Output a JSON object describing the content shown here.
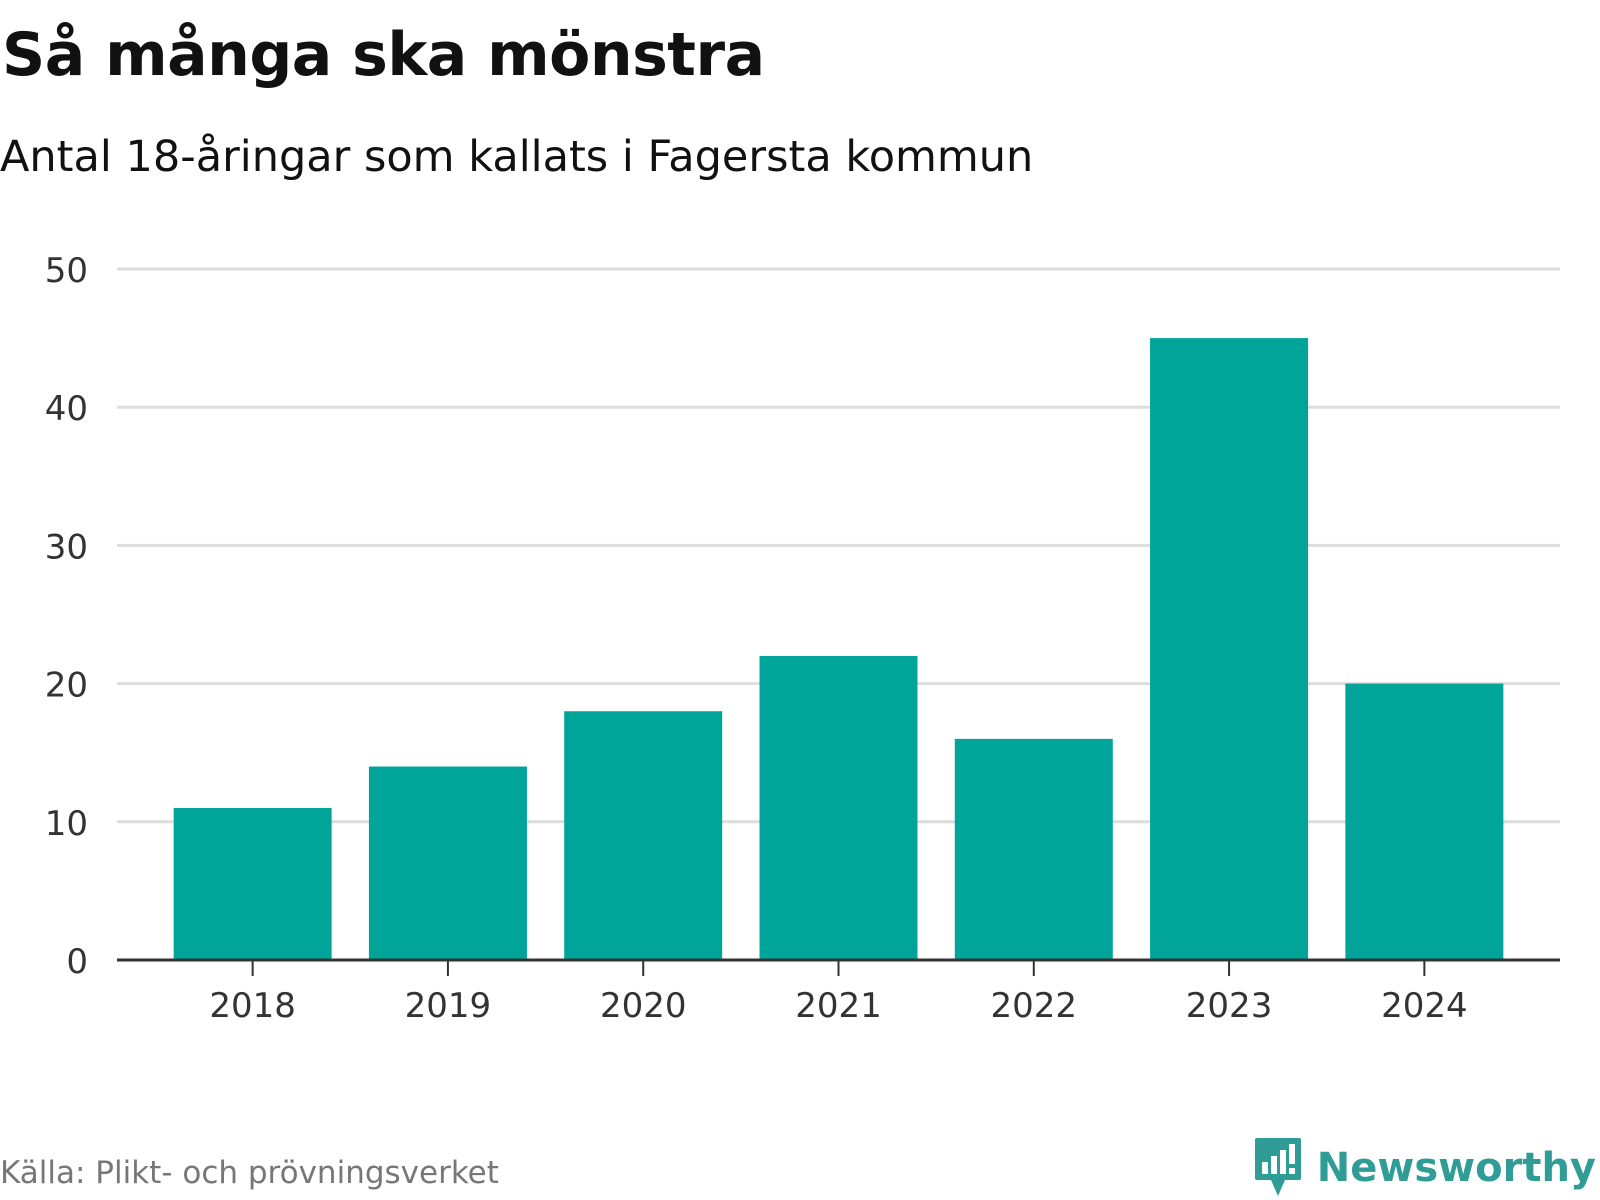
{
  "header": {
    "title": "Så många ska mönstra",
    "subtitle": "Antal 18-åringar som kallats i Fagersta kommun"
  },
  "footer": {
    "source": "Källa: Plikt- och prövningsverket",
    "brand": "Newsworthy"
  },
  "colors": {
    "bar": "#00a499",
    "grid": "#dddddd",
    "axis": "#333333",
    "tick_label": "#333333",
    "brand": "#2f9d96"
  },
  "chart_data": {
    "type": "bar",
    "categories": [
      "2018",
      "2019",
      "2020",
      "2021",
      "2022",
      "2023",
      "2024"
    ],
    "values": [
      11,
      14,
      18,
      22,
      16,
      45,
      20
    ],
    "yticks": [
      0,
      10,
      20,
      30,
      40,
      50
    ],
    "ylim": [
      0,
      50
    ],
    "title": "Så många ska mönstra",
    "xlabel": "",
    "ylabel": "",
    "grid": true,
    "legend": "none"
  }
}
